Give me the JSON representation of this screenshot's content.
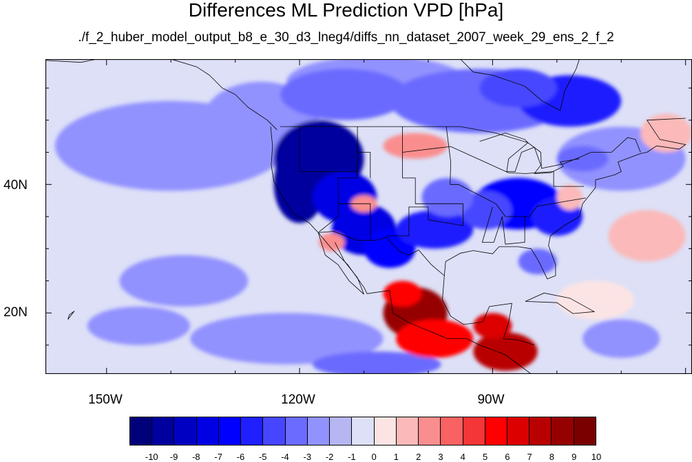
{
  "title": "Differences ML Prediction VPD [hPa]",
  "subtitle": "./f_2_huber_model_output_b8_e_30_d3_lneg4/diffs_nn_dataset_2007_week_29_ens_2_f_2",
  "axes": {
    "lat_labels": [
      "40N",
      "20N"
    ],
    "lon_labels": [
      "150W",
      "120W",
      "90W"
    ],
    "lat_values": [
      40,
      20
    ],
    "lon_values": [
      -150,
      -120,
      -90
    ],
    "lat_range": [
      10.5,
      59.5
    ],
    "lon_range": [
      -159.5,
      -59
    ]
  },
  "colorbar": {
    "labels": [
      "-10",
      "-9",
      "-8",
      "-7",
      "-6",
      "-5",
      "-4",
      "-3",
      "-2",
      "-1",
      "0",
      "1",
      "2",
      "3",
      "4",
      "5",
      "6",
      "7",
      "8",
      "9",
      "10"
    ],
    "colors": [
      "#00007a",
      "#00009e",
      "#0000c3",
      "#0000e4",
      "#0000ff",
      "#1f1fff",
      "#4646ff",
      "#6b6bff",
      "#9292ff",
      "#b6b6f3",
      "#dde0f7",
      "#fde4e4",
      "#fbb9b9",
      "#fa8e8e",
      "#f86262",
      "#f43636",
      "#ff0000",
      "#dc0000",
      "#b90000",
      "#960000",
      "#7a0000"
    ]
  },
  "chart_data": {
    "type": "heatmap",
    "title": "Differences ML Prediction VPD [hPa]",
    "subtitle": "./f_2_huber_model_output_b8_e_30_d3_lneg4/diffs_nn_dataset_2007_week_29_ens_2_f_2",
    "projection": "cylindrical equidistant",
    "lat_range": [
      10.5,
      59.5
    ],
    "lon_range": [
      -159.5,
      -59
    ],
    "legend_levels": [
      -10,
      -9,
      -8,
      -7,
      -6,
      -5,
      -4,
      -3,
      -2,
      -1,
      0,
      1,
      2,
      3,
      4,
      5,
      6,
      7,
      8,
      9,
      10
    ],
    "background_ocean_value": -1,
    "field_features": [
      {
        "region": "western US interior",
        "lon": -117,
        "lat": 42,
        "value": -9
      },
      {
        "region": "Great Basin",
        "lon": -112,
        "lat": 36,
        "value": -7
      },
      {
        "region": "southwest US / northern Mexico",
        "lon": -108,
        "lat": 31,
        "value": -6
      },
      {
        "region": "eastern US",
        "lon": -85,
        "lat": 36,
        "value": -6
      },
      {
        "region": "south-central US",
        "lon": -97,
        "lat": 33,
        "value": -5
      },
      {
        "region": "Hudson Bay area",
        "lon": -80,
        "lat": 53,
        "value": -5
      },
      {
        "region": "central Canada",
        "lon": -98,
        "lat": 52,
        "value": -4
      },
      {
        "region": "western Mexico",
        "lon": -101,
        "lat": 19,
        "value": 9
      },
      {
        "region": "southern Mexico",
        "lon": -99,
        "lat": 16,
        "value": 5
      },
      {
        "region": "Central America",
        "lon": -87,
        "lat": 14,
        "value": 8
      },
      {
        "region": "Yucatan",
        "lon": -90,
        "lat": 18,
        "value": 7
      },
      {
        "region": "northern Plains",
        "lon": -104,
        "lat": 45,
        "value": 3
      },
      {
        "region": "northeast Pacific",
        "lon": -135,
        "lat": 45,
        "value": -2
      },
      {
        "region": "subtropical Pacific",
        "lon": -125,
        "lat": 18,
        "value": -2
      },
      {
        "region": "eastern Pacific",
        "lon": -112,
        "lat": 12,
        "value": -3
      },
      {
        "region": "western Atlantic",
        "lon": -66,
        "lat": 30,
        "value": 2
      }
    ]
  }
}
